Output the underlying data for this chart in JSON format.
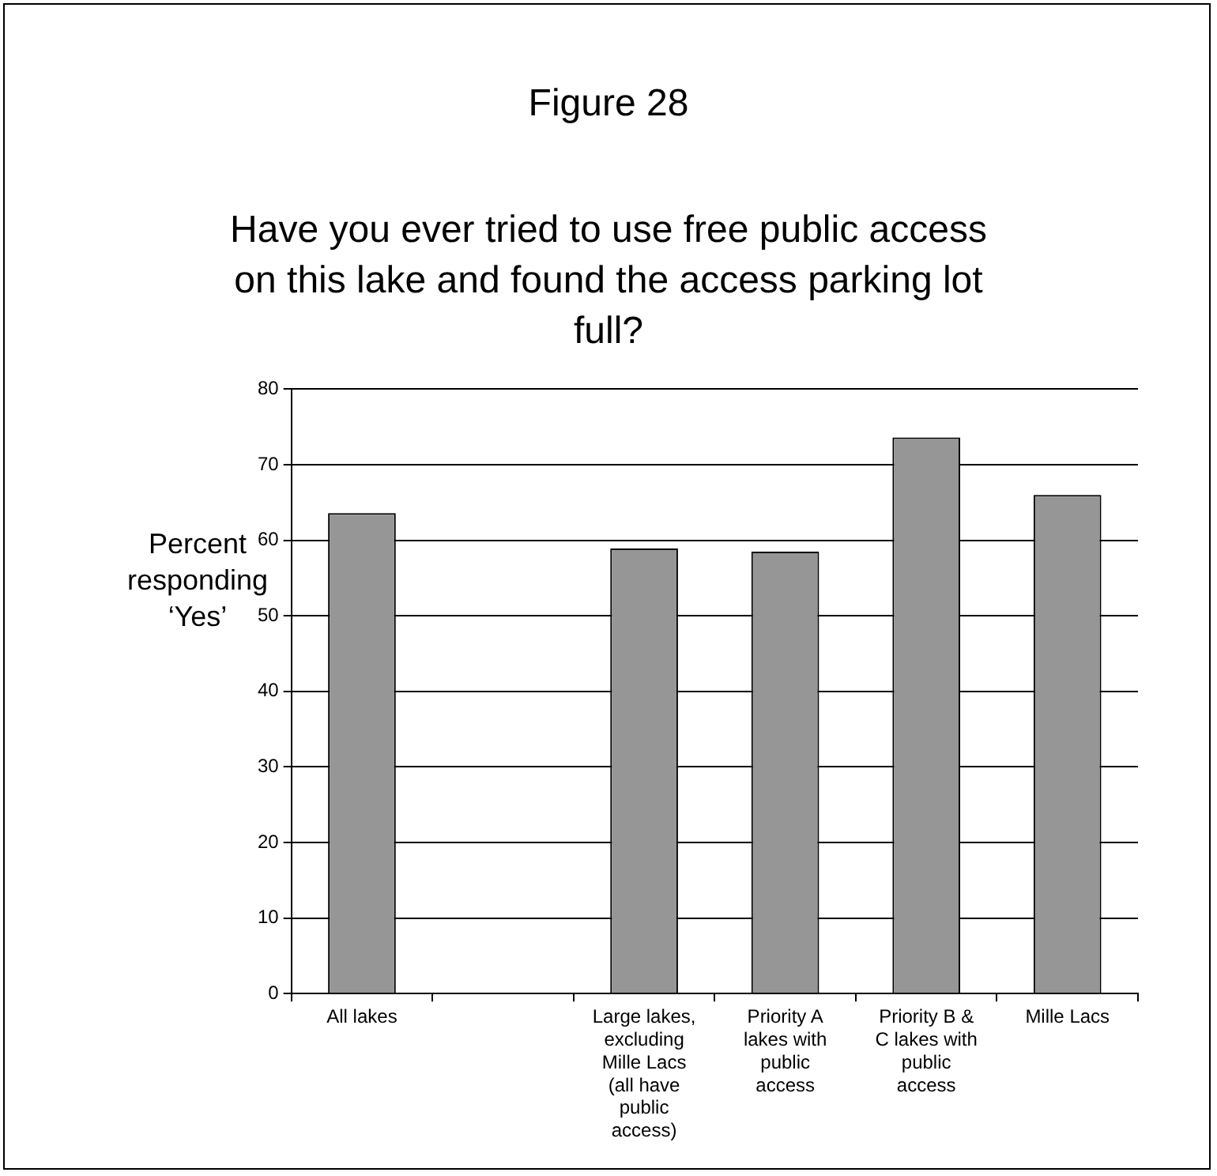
{
  "chart_data": {
    "type": "bar",
    "title": "Figure 28",
    "subtitle": "Have you ever tried to use free public access on this lake and found the access parking lot full?",
    "ylabel": "Percent responding ‘Yes’",
    "categories": [
      "All lakes",
      null,
      "Large lakes, excluding Mille Lacs (all have public access)",
      "Priority A lakes with public access",
      "Priority B & C lakes with public access",
      "Mille Lacs"
    ],
    "values": [
      63.6,
      null,
      58.9,
      58.5,
      73.6,
      66.0
    ],
    "color": "#969696",
    "ylim": [
      0,
      80
    ],
    "yticks": [
      0,
      10,
      20,
      30,
      40,
      50,
      60,
      70,
      80
    ],
    "grid": "y",
    "legend": false
  }
}
